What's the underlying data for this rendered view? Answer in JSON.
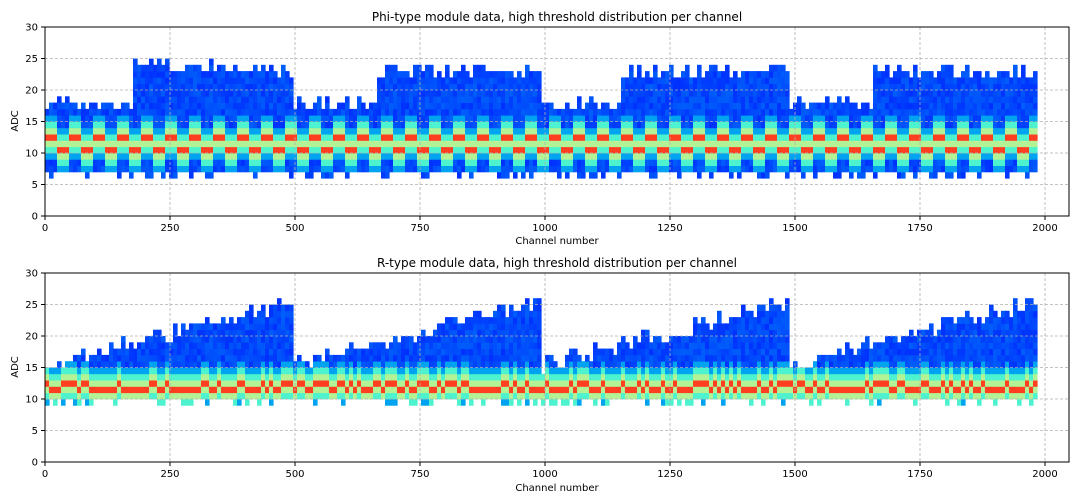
{
  "chart_data": [
    {
      "type": "heatmap",
      "title": "Phi-type module data, high threshold distribution per channel",
      "xlabel": "Channel number",
      "ylabel": "ADC",
      "xlim": [
        0,
        2048
      ],
      "ylim": [
        0,
        30
      ],
      "xticks": [
        0,
        250,
        500,
        750,
        1000,
        1250,
        1500,
        1750,
        2000
      ],
      "yticks": [
        0,
        5,
        10,
        15,
        20,
        25,
        30
      ],
      "grid": true,
      "colormap": "rainbow",
      "n_channels": 1984,
      "module_size": 496,
      "segments": [
        {
          "x": [
            0,
            170
          ],
          "upper": 18
        },
        {
          "x": [
            170,
            355
          ],
          "upper": 24
        },
        {
          "x": [
            355,
            496
          ],
          "upper": 23
        },
        {
          "x": [
            496,
            660
          ],
          "upper": 18
        },
        {
          "x": [
            660,
            992
          ],
          "upper": 23
        },
        {
          "x": [
            992,
            1150
          ],
          "upper": 18
        },
        {
          "x": [
            1150,
            1488
          ],
          "upper": 23
        },
        {
          "x": [
            1488,
            1655
          ],
          "upper": 18
        },
        {
          "x": [
            1655,
            1984
          ],
          "upper": 23
        }
      ],
      "lower": 7,
      "peak_adc": [
        10,
        12
      ],
      "peak_alternates": true
    },
    {
      "type": "heatmap",
      "title": "R-type module data, high threshold distribution per channel",
      "xlabel": "Channel number",
      "ylabel": "ADC",
      "xlim": [
        0,
        2048
      ],
      "ylim": [
        0,
        30
      ],
      "xticks": [
        0,
        250,
        500,
        750,
        1000,
        1250,
        1500,
        1750,
        2000
      ],
      "yticks": [
        0,
        5,
        10,
        15,
        20,
        25,
        30
      ],
      "grid": true,
      "colormap": "rainbow",
      "n_channels": 1984,
      "module_size": 496,
      "upper_ramp": [
        15,
        25
      ],
      "lower": 10,
      "peak_adc": [
        11,
        12
      ],
      "peak_alternates": false
    }
  ]
}
